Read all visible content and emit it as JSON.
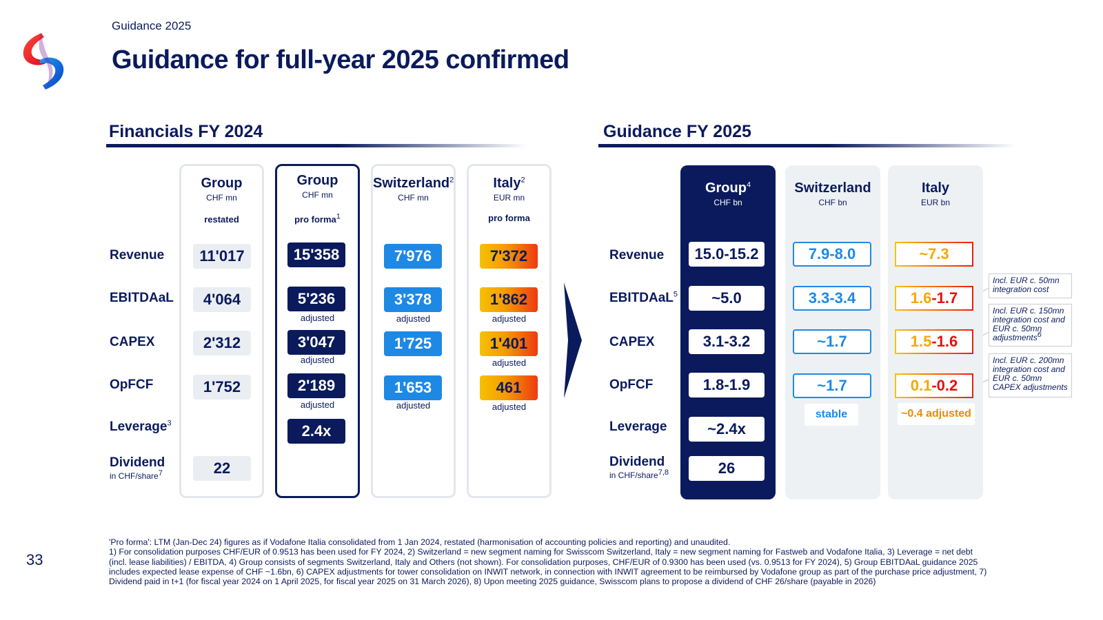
{
  "header": {
    "kicker": "Guidance 2025",
    "title": "Guidance for full-year 2025 confirmed"
  },
  "left": {
    "section_title": "Financials FY 2024",
    "row_labels": [
      "Revenue",
      "EBITDAaL",
      "CAPEX",
      "OpFCF",
      "Leverage",
      "Dividend"
    ],
    "leverage_sup": "3",
    "dividend_sub": "in CHF/share",
    "dividend_sub_sup": "7",
    "columns": [
      {
        "name": "Group",
        "sup": "",
        "unit": "CHF mn",
        "tag": "restated",
        "tag_sup": "",
        "values": [
          "11'017",
          "4'064",
          "2'312",
          "1'752",
          "",
          "22"
        ],
        "adjusted": [
          "",
          "",
          "",
          "",
          "",
          ""
        ]
      },
      {
        "name": "Group",
        "sup": "",
        "unit": "CHF mn",
        "tag": "pro forma",
        "tag_sup": "1",
        "values": [
          "15'358",
          "5'236",
          "3'047",
          "2'189",
          "2.4x",
          ""
        ],
        "adjusted": [
          "",
          "adjusted",
          "adjusted",
          "adjusted",
          "",
          ""
        ]
      },
      {
        "name": "Switzerland",
        "sup": "2",
        "unit": "CHF mn",
        "tag": "",
        "tag_sup": "",
        "values": [
          "7'976",
          "3'378",
          "1'725",
          "1'653",
          "",
          ""
        ],
        "adjusted": [
          "",
          "adjusted",
          "",
          "adjusted",
          "",
          ""
        ]
      },
      {
        "name": "Italy",
        "sup": "2",
        "unit": "EUR mn",
        "tag": "pro forma",
        "tag_sup": "",
        "values": [
          "7'372",
          "1'862",
          "1'401",
          "461",
          "",
          ""
        ],
        "adjusted": [
          "",
          "adjusted",
          "adjusted",
          "adjusted",
          "",
          ""
        ]
      }
    ]
  },
  "right": {
    "section_title": "Guidance FY 2025",
    "row_labels": [
      "Revenue",
      "EBITDAaL",
      "CAPEX",
      "OpFCF",
      "Leverage",
      "Dividend"
    ],
    "ebitdaal_sup": "5",
    "dividend_sub": "in CHF/share",
    "dividend_sub_sup": "7,8",
    "group": {
      "name": "Group",
      "sup": "4",
      "unit": "CHF bn",
      "values": [
        "15.0-15.2",
        "~5.0",
        "3.1-3.2",
        "1.8-1.9",
        "~2.4x",
        "26"
      ]
    },
    "switzerland": {
      "name": "Switzerland",
      "unit": "CHF bn",
      "values": [
        "7.9-8.0",
        "3.3-3.4",
        "~1.7",
        "~1.7"
      ],
      "stable_label": "stable"
    },
    "italy": {
      "name": "Italy",
      "unit": "EUR bn",
      "revenue": "~7.3",
      "ebitdaal": {
        "low": "1.6",
        "high": "-1.7"
      },
      "capex": {
        "low": "1.5",
        "high": "-1.6"
      },
      "opfcf": {
        "low": "0.1",
        "high": "-0.2"
      },
      "adjusted_label": "~0.4 adjusted"
    },
    "notes": [
      "Incl. EUR c. 50mn integration cost",
      "Incl. EUR c. 150mn integration cost and EUR c. 50mn adjustments",
      "Incl. EUR c. 200mn integration cost and EUR c. 50mn CAPEX adjustments"
    ],
    "note2_sup": "6"
  },
  "footnote": {
    "line1": "'Pro forma': LTM (Jan-Dec 24) figures as if Vodafone Italia consolidated from 1 Jan 2024, restated (harmonisation of accounting policies and reporting) and unaudited.",
    "line2": "1) For consolidation purposes CHF/EUR of 0.9513 has been used for FY 2024, 2) Switzerland = new segment naming for Swisscom Switzerland, Italy = new segment naming for Fastweb and Vodafone Italia, 3) Leverage = net debt (incl. lease liabilities) / EBITDA, 4) Group consists of segments Switzerland, Italy and Others (not shown). For consolidation purposes, CHF/EUR of 0.9300 has been used (vs. 0.9513 for FY 2024), 5) Group EBITDAaL guidance 2025 includes expected lease expense of CHF ~1.6bn, 6) CAPEX adjustments for tower consolidation on INWIT network, in connection with INWIT agreement to be reimbursed by Vodafone group as part of the purchase price adjustment, 7) Dividend paid in t+1 (for fiscal year 2024 on 1 April 2025, for fiscal year 2025 on 31 March 2026), 8) Upon meeting 2025 guidance, Swisscom plans to propose a dividend of CHF 26/share (payable in 2026)"
  },
  "page_number": "33",
  "colors": {
    "navy": "#0a1a5c",
    "blue": "#1e88e5",
    "red": "#e4100e",
    "orange": "#f5a800"
  }
}
